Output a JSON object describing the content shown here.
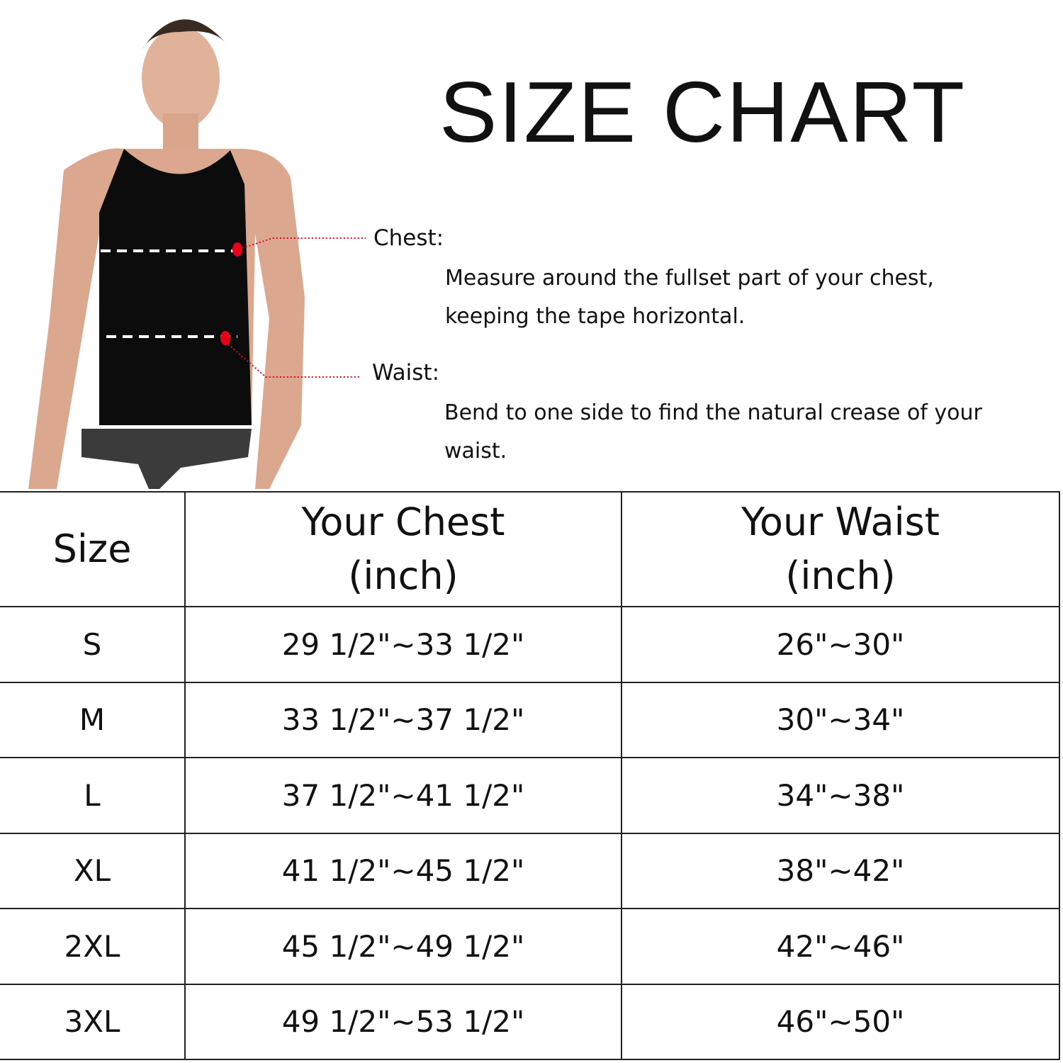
{
  "title": "SIZE CHART",
  "measurements": {
    "chest": {
      "label": "Chest:",
      "description": "Measure around the fullset part of your chest, keeping the tape horizontal."
    },
    "waist": {
      "label": "Waist:",
      "description": "Bend to one side to find the natural crease of your waist."
    }
  },
  "accent_color": "#e8001c",
  "table": {
    "headers": [
      "Size",
      "Your Chest\n(inch)",
      "Your Waist\n(inch)"
    ],
    "rows": [
      [
        "S",
        "29 1/2\"~33 1/2\"",
        "26\"~30\""
      ],
      [
        "M",
        "33 1/2\"~37 1/2\"",
        "30\"~34\""
      ],
      [
        "L",
        "37 1/2\"~41 1/2\"",
        "34\"~38\""
      ],
      [
        "XL",
        "41 1/2\"~45 1/2\"",
        "38\"~42\""
      ],
      [
        "2XL",
        "45 1/2\"~49 1/2\"",
        "42\"~46\""
      ],
      [
        "3XL",
        "49 1/2\"~53 1/2\"",
        "46\"~50\""
      ]
    ]
  }
}
